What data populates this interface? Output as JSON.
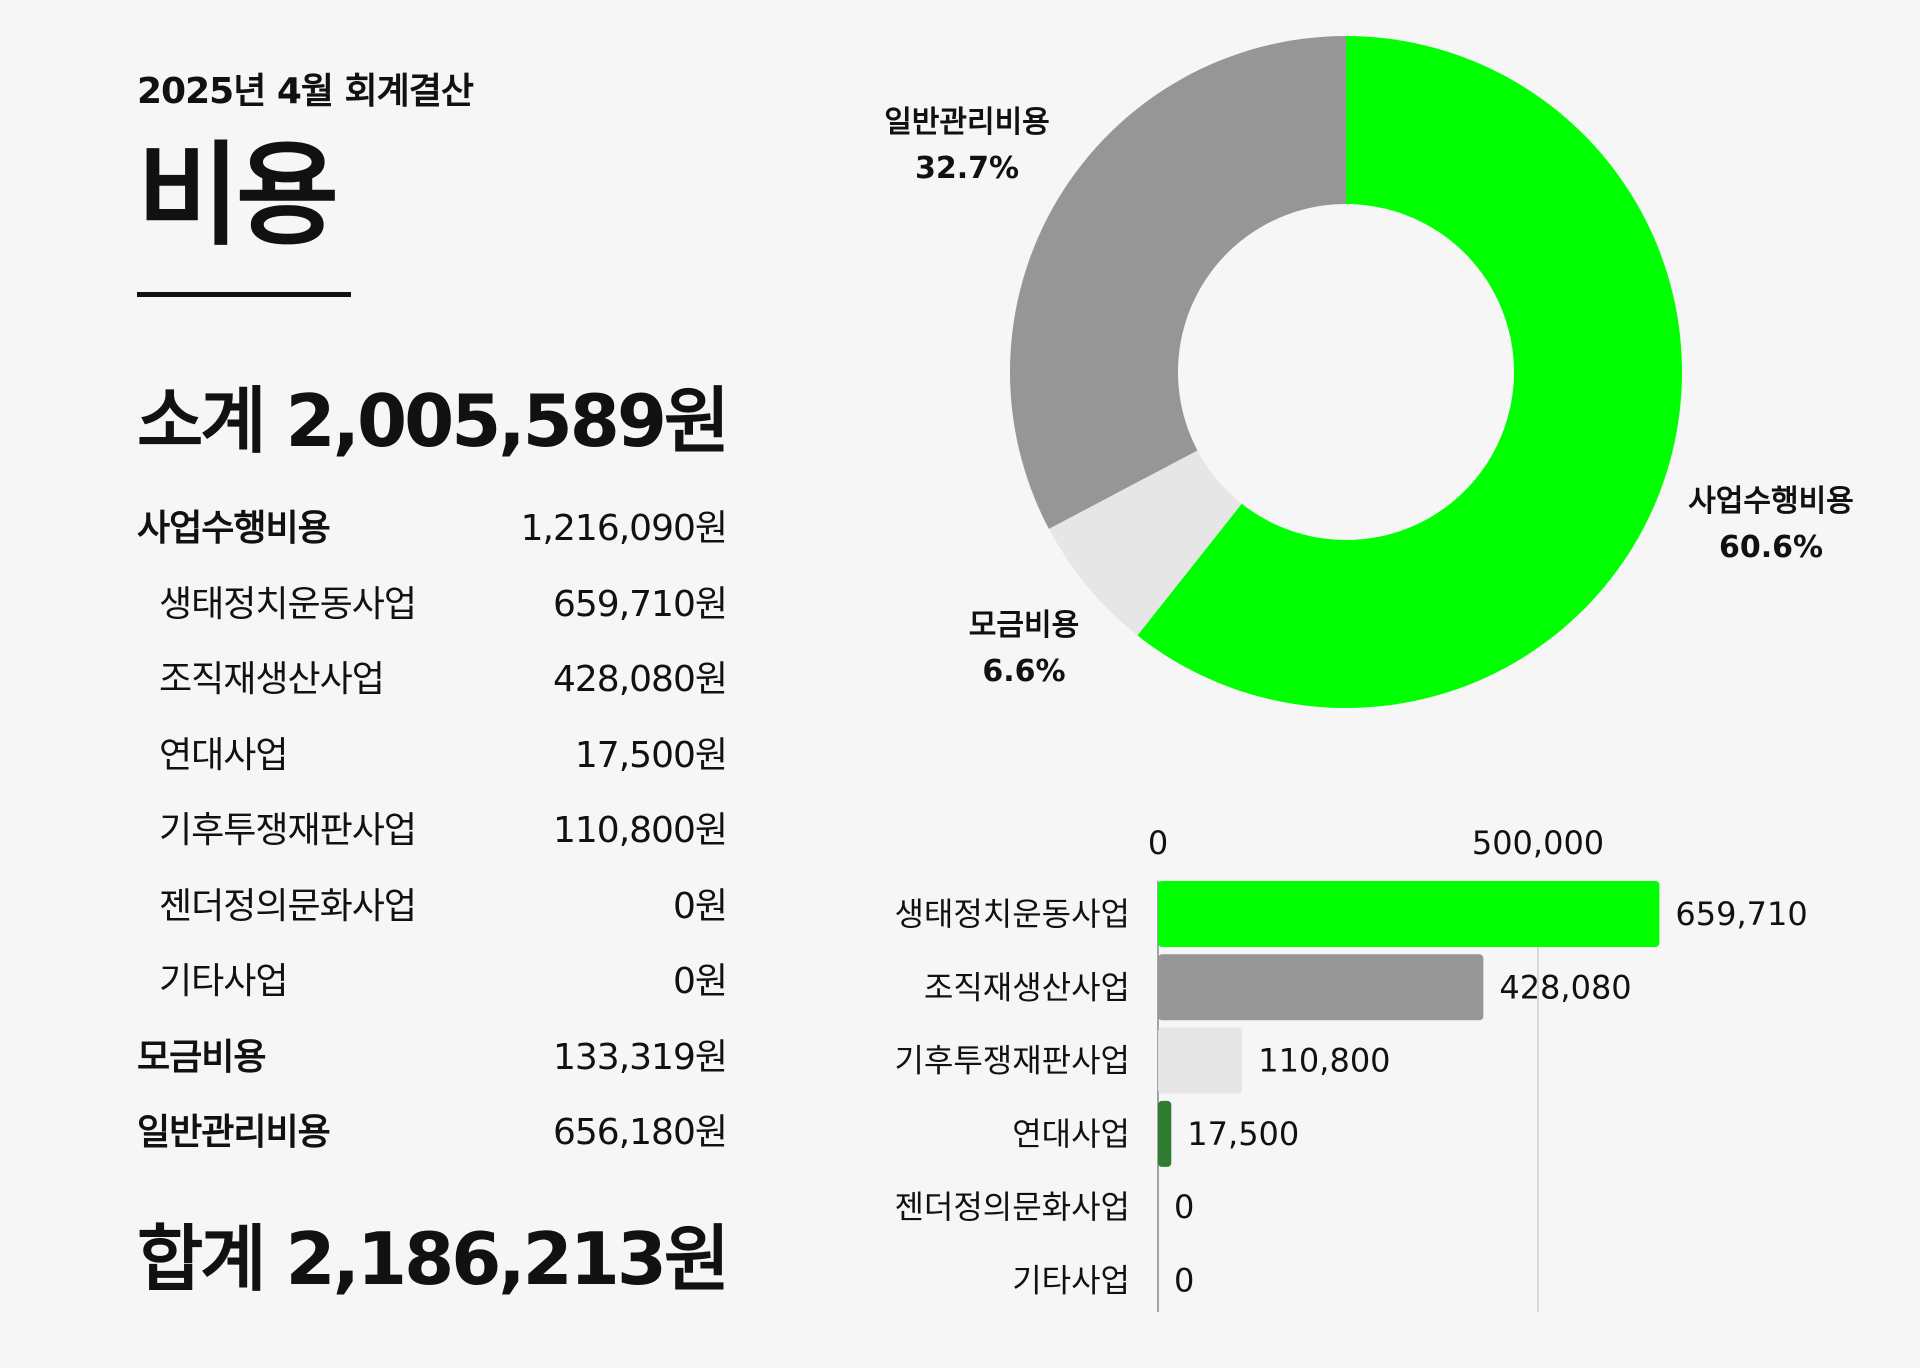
{
  "header": {
    "subtitle": "2025년 4월 회계결산",
    "title": "비용",
    "subtotal": "소계 2,005,589원",
    "total": "합계 2,186,213원"
  },
  "table": {
    "rows": [
      {
        "label": "사업수행비용",
        "amount": "1,216,090원",
        "level": "main"
      },
      {
        "label": "생태정치운동사업",
        "amount": "659,710원",
        "level": "sub"
      },
      {
        "label": "조직재생산사업",
        "amount": "428,080원",
        "level": "sub"
      },
      {
        "label": "연대사업",
        "amount": "17,500원",
        "level": "sub"
      },
      {
        "label": "기후투쟁재판사업",
        "amount": "110,800원",
        "level": "sub"
      },
      {
        "label": "젠더정의문화사업",
        "amount": "0원",
        "level": "sub"
      },
      {
        "label": "기타사업",
        "amount": "0원",
        "level": "sub"
      },
      {
        "label": "모금비용",
        "amount": "133,319원",
        "level": "main"
      },
      {
        "label": "일반관리비용",
        "amount": "656,180원",
        "level": "main"
      }
    ]
  },
  "chart_data": [
    {
      "type": "pie",
      "categories": [
        "사업수행비용",
        "모금비용",
        "일반관리비용"
      ],
      "values": [
        60.6,
        6.6,
        32.7
      ],
      "value_labels": [
        "60.6%",
        "6.6%",
        "32.7%"
      ],
      "colors": [
        "#00ff00",
        "#e6e6e6",
        "#969696"
      ],
      "hole": true
    },
    {
      "type": "bar",
      "orientation": "horizontal",
      "categories": [
        "생태정치운동사업",
        "조직재생산사업",
        "기후투쟁재판사업",
        "연대사업",
        "젠더정의문화사업",
        "기타사업"
      ],
      "values": [
        659710,
        428080,
        110800,
        17500,
        0,
        0
      ],
      "value_labels": [
        "659,710",
        "428,080",
        "110,800",
        "17,500",
        "0",
        "0"
      ],
      "colors": [
        "#00ff00",
        "#969696",
        "#e6e6e6",
        "#2e7d32",
        "#e6e6e6",
        "#e6e6e6"
      ],
      "xticks": [
        0,
        500000
      ],
      "xtick_labels": [
        "0",
        "500,000"
      ],
      "xaxis_position": "top",
      "grid": true
    }
  ]
}
